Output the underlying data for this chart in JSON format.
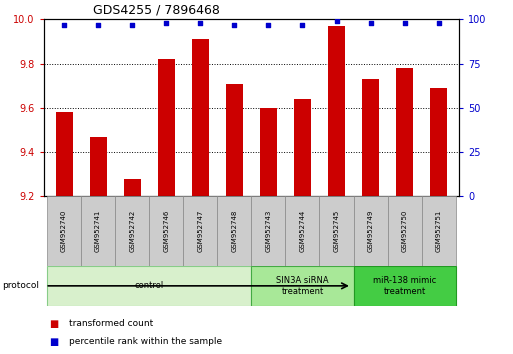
{
  "title": "GDS4255 / 7896468",
  "samples": [
    "GSM952740",
    "GSM952741",
    "GSM952742",
    "GSM952746",
    "GSM952747",
    "GSM952748",
    "GSM952743",
    "GSM952744",
    "GSM952745",
    "GSM952749",
    "GSM952750",
    "GSM952751"
  ],
  "transformed_counts": [
    9.58,
    9.47,
    9.28,
    9.82,
    9.91,
    9.71,
    9.6,
    9.64,
    9.97,
    9.73,
    9.78,
    9.69
  ],
  "percentile_ranks": [
    97,
    97,
    97,
    98,
    98,
    97,
    97,
    97,
    99,
    98,
    98,
    98
  ],
  "bar_color": "#cc0000",
  "dot_color": "#0000cc",
  "ylim_left": [
    9.2,
    10.0
  ],
  "ylim_right": [
    0,
    100
  ],
  "yticks_left": [
    9.2,
    9.4,
    9.6,
    9.8,
    10.0
  ],
  "yticks_right": [
    0,
    25,
    50,
    75,
    100
  ],
  "groups": [
    {
      "label": "control",
      "start": 0,
      "end": 5,
      "color": "#d8f0cc",
      "border": "#88cc88"
    },
    {
      "label": "SIN3A siRNA\ntreatment",
      "start": 6,
      "end": 8,
      "color": "#a8e898",
      "border": "#44aa44"
    },
    {
      "label": "miR-138 mimic\ntreatment",
      "start": 9,
      "end": 11,
      "color": "#44cc44",
      "border": "#229922"
    }
  ],
  "legend_items": [
    {
      "label": "transformed count",
      "color": "#cc0000"
    },
    {
      "label": "percentile rank within the sample",
      "color": "#0000cc"
    }
  ],
  "protocol_label": "protocol",
  "bar_color_left_axis": "#cc0000",
  "dot_color_right_axis": "#0000cc",
  "bar_width": 0.5,
  "sample_box_color": "#cccccc",
  "sample_box_edge": "#888888"
}
